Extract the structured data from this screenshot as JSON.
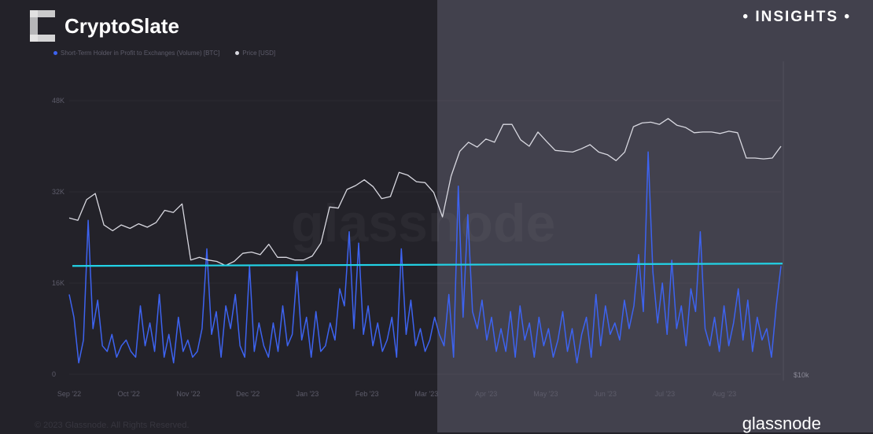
{
  "brand": {
    "name": "CryptoSlate",
    "badge": "• INSIGHTS •"
  },
  "footer": {
    "copyright": "© 2023 Glassnode. All Rights Reserved.",
    "provider_logo": "glassnode",
    "watermark": "glassnode"
  },
  "colors": {
    "volume": "#3d63f0",
    "price": "#d8d8e0",
    "threshold": "#22d3e6"
  },
  "chart_data": {
    "type": "line",
    "title": "",
    "legend": [
      {
        "name": "Short-Term Holder in Profit to Exchanges (Volume) [BTC]",
        "color": "#3d63f0"
      },
      {
        "name": "Price [USD]",
        "color": "#d8d8e0"
      }
    ],
    "legend_position": "top-left",
    "x_range": [
      "2022-09-01",
      "2023-09-01"
    ],
    "xticks": [
      "Sep '22",
      "Oct '22",
      "Nov '22",
      "Dec '22",
      "Jan '23",
      "Feb '23",
      "Mar '23",
      "Apr '23",
      "May '23",
      "Jun '23",
      "Jul '23",
      "Aug '23"
    ],
    "yticks_left": [
      "48K",
      "32K",
      "16K",
      "0"
    ],
    "yticks_left_values": [
      48000,
      32000,
      16000,
      0
    ],
    "yticks_right": [
      "$10k"
    ],
    "ylim_left": [
      0,
      48000
    ],
    "y_right_scale": "log",
    "threshold": {
      "value": 19000,
      "color": "#22d3e6"
    },
    "series": [
      {
        "name": "Short-Term Holder in Profit to Exchanges (Volume) [BTC]",
        "axis": "left",
        "unit": "K BTC",
        "values": [
          14,
          10,
          2,
          6,
          27,
          8,
          13,
          5,
          4,
          7,
          3,
          5,
          6,
          4,
          3,
          12,
          5,
          9,
          4,
          14,
          3,
          7,
          2,
          10,
          4,
          6,
          3,
          4,
          8,
          22,
          7,
          11,
          3,
          12,
          8,
          14,
          5,
          3,
          19,
          4,
          9,
          5,
          3,
          9,
          4,
          12,
          5,
          7,
          18,
          6,
          10,
          3,
          11,
          4,
          5,
          9,
          6,
          15,
          12,
          25,
          8,
          23,
          7,
          12,
          5,
          9,
          4,
          6,
          10,
          3,
          22,
          7,
          13,
          5,
          8,
          4,
          6,
          10,
          7,
          5,
          14,
          3,
          33,
          10,
          28,
          11,
          8,
          13,
          6,
          10,
          4,
          8,
          4,
          11,
          3,
          12,
          6,
          9,
          3,
          10,
          5,
          8,
          3,
          6,
          11,
          4,
          8,
          2,
          7,
          10,
          3,
          14,
          5,
          12,
          7,
          9,
          6,
          13,
          8,
          12,
          21,
          11,
          39,
          18,
          9,
          16,
          7,
          20,
          8,
          12,
          5,
          15,
          11,
          25,
          8,
          5,
          10,
          4,
          12,
          5,
          9,
          15,
          6,
          13,
          4,
          10,
          6,
          8,
          3,
          12,
          19
        ]
      },
      {
        "name": "Price [USD]",
        "axis": "right",
        "unit": "K USD",
        "values": [
          20.0,
          19.8,
          21.7,
          22.3,
          19.4,
          18.9,
          19.4,
          19.1,
          19.5,
          19.2,
          19.6,
          20.7,
          20.5,
          21.3,
          16.6,
          16.8,
          16.6,
          16.5,
          16.2,
          16.5,
          17.1,
          17.2,
          17.0,
          17.8,
          16.8,
          16.8,
          16.6,
          16.6,
          16.9,
          17.9,
          21.0,
          20.9,
          22.7,
          23.1,
          23.7,
          23.0,
          21.8,
          22.0,
          24.5,
          24.2,
          23.5,
          23.4,
          22.4,
          20.1,
          24.1,
          26.9,
          28.0,
          27.4,
          28.4,
          28.0,
          30.3,
          30.3,
          28.3,
          27.5,
          29.3,
          28.1,
          27.0,
          26.9,
          26.8,
          27.2,
          27.7,
          26.8,
          26.5,
          25.8,
          26.8,
          30.0,
          30.5,
          30.6,
          30.3,
          31.1,
          30.2,
          29.9,
          29.2,
          29.3,
          29.3,
          29.1,
          29.4,
          29.2,
          26.1,
          26.1,
          26.0,
          26.1,
          27.5
        ]
      }
    ]
  }
}
